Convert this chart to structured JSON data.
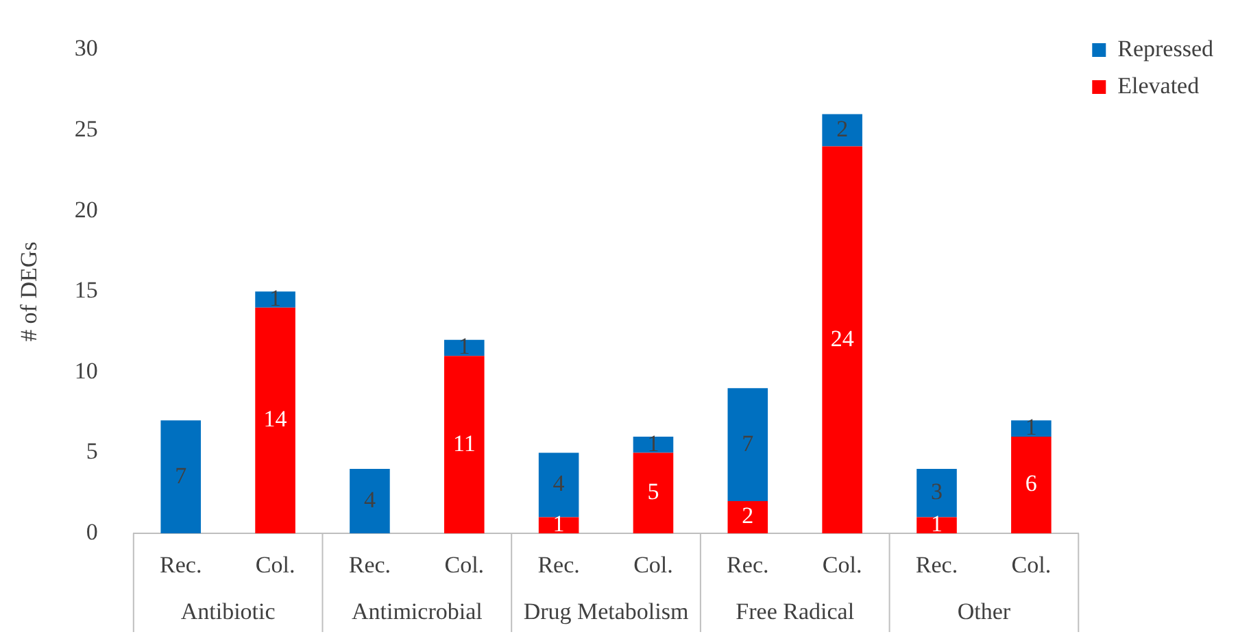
{
  "chart_data": {
    "type": "bar",
    "ylabel": "# of DEGs",
    "categories": [
      "Rec.",
      "Col.",
      "Rec.",
      "Col.",
      "Rec.",
      "Col.",
      "Rec.",
      "Col.",
      "Rec.",
      "Col."
    ],
    "series": [
      {
        "name": "Elevated",
        "color": "#ff0000",
        "values": [
          0,
          14,
          0,
          11,
          1,
          5,
          2,
          24,
          1,
          6
        ],
        "value_labels": [
          null,
          "14",
          null,
          "11",
          "1",
          "5",
          "2",
          "24",
          "1",
          "6"
        ]
      },
      {
        "name": "Repressed",
        "color": "#0070c0",
        "values": [
          7,
          1,
          4,
          1,
          4,
          1,
          7,
          2,
          3,
          1
        ],
        "value_labels": [
          "7",
          "1",
          "4",
          "1",
          "4",
          "1",
          "7",
          "2",
          "3",
          "1"
        ]
      }
    ],
    "stacked": true,
    "ylim": [
      0,
      30
    ],
    "yticks": [
      0,
      5,
      10,
      15,
      20,
      25,
      30
    ],
    "grid": false,
    "legend": "top right",
    "annotations": [
      "Antibiotic",
      "Antimicrobial",
      "Drug Metabolism",
      "Free Radical",
      "Other"
    ]
  }
}
